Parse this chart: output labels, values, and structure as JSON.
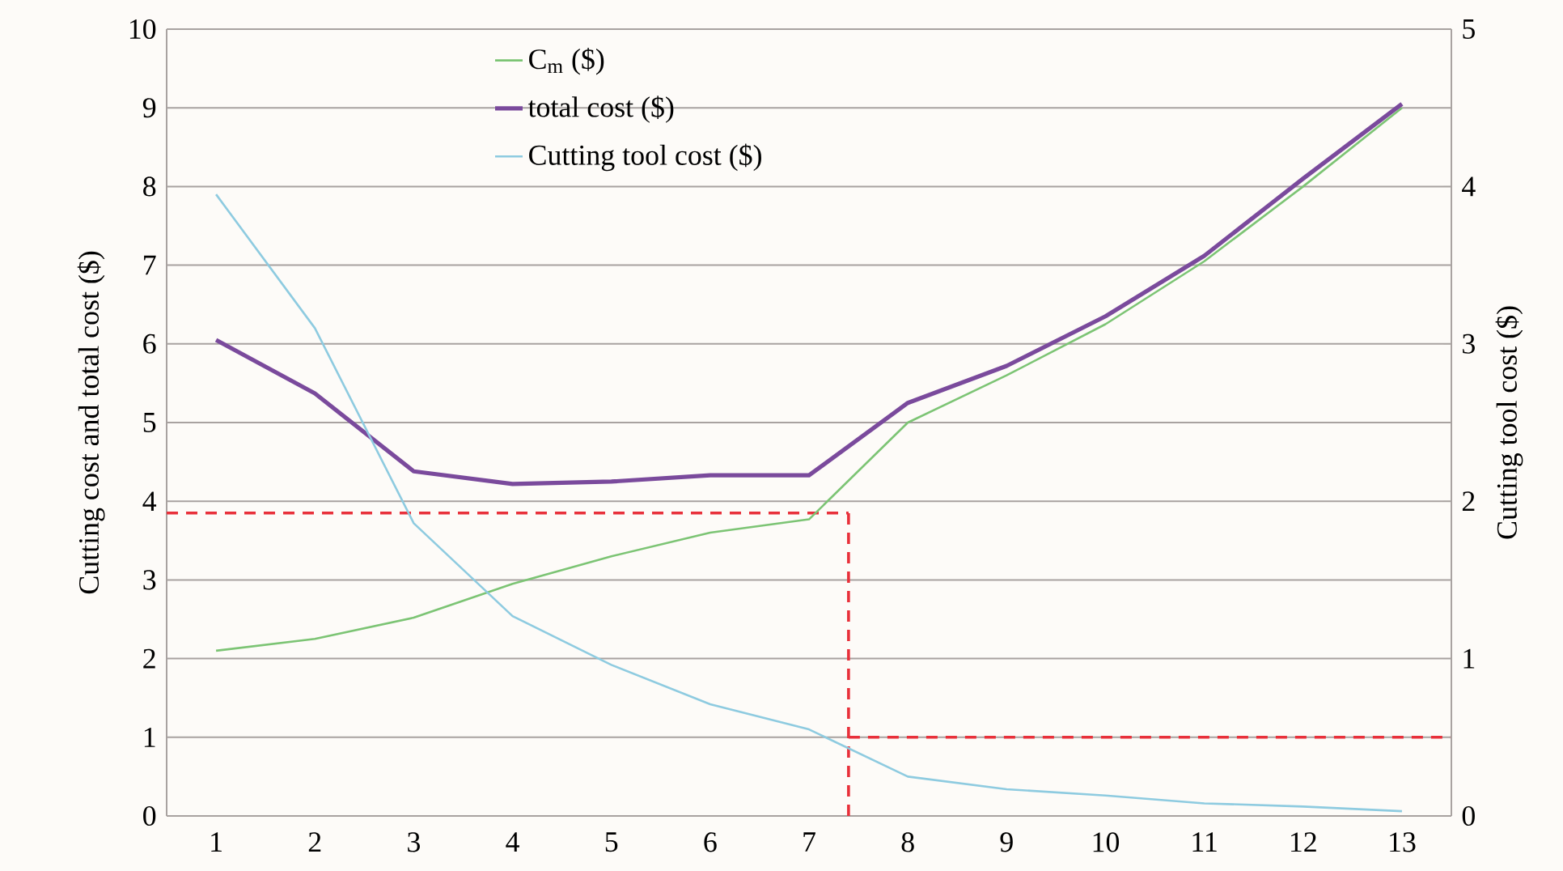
{
  "chart_data": {
    "type": "line",
    "ylabel": "Cutting cost and total cost ($)",
    "y2label": "Cutting tool cost ($)",
    "x": [
      1,
      2,
      3,
      4,
      5,
      6,
      7,
      8,
      9,
      10,
      11,
      12,
      13
    ],
    "xlim": [
      0.5,
      13.5
    ],
    "xticks": [
      1,
      2,
      3,
      4,
      5,
      6,
      7,
      8,
      9,
      10,
      11,
      12,
      13
    ],
    "ylim": [
      0,
      10
    ],
    "yticks": [
      0,
      1,
      2,
      3,
      4,
      5,
      6,
      7,
      8,
      9,
      10
    ],
    "y2lim": [
      0,
      5
    ],
    "y2ticks": [
      0,
      1,
      2,
      3,
      4,
      5
    ],
    "series": [
      {
        "name": "C$_{m}$ ($)",
        "color": "#7cc474",
        "values": [
          2.1,
          2.25,
          2.52,
          2.95,
          3.3,
          3.6,
          3.77,
          5.0,
          5.6,
          6.25,
          7.05,
          8.0,
          9.0
        ]
      },
      {
        "name": "total cost ($)",
        "color": "#7a4a9c",
        "values": [
          6.05,
          5.37,
          4.38,
          4.22,
          4.25,
          4.33,
          4.33,
          5.25,
          5.72,
          6.35,
          7.12,
          8.1,
          9.05
        ]
      },
      {
        "name": "Cutting tool cost ($)",
        "color": "#8ecbe0",
        "axis": "y2",
        "values": [
          3.95,
          3.1,
          1.86,
          1.27,
          0.96,
          0.71,
          0.55,
          0.25,
          0.17,
          0.13,
          0.08,
          0.06,
          0.03
        ]
      }
    ],
    "ref_lines": [
      {
        "axis": "y",
        "value": 3.85,
        "color": "#e8303a",
        "line_style": "dashed"
      },
      {
        "axis": "x",
        "value": 7.4,
        "color": "#e8303a",
        "line_style": "dashed"
      },
      {
        "axis": "y2",
        "value": 0.5,
        "color": "#e8303a",
        "line_style": "dashed"
      }
    ],
    "grid": "y",
    "legend": "top"
  }
}
